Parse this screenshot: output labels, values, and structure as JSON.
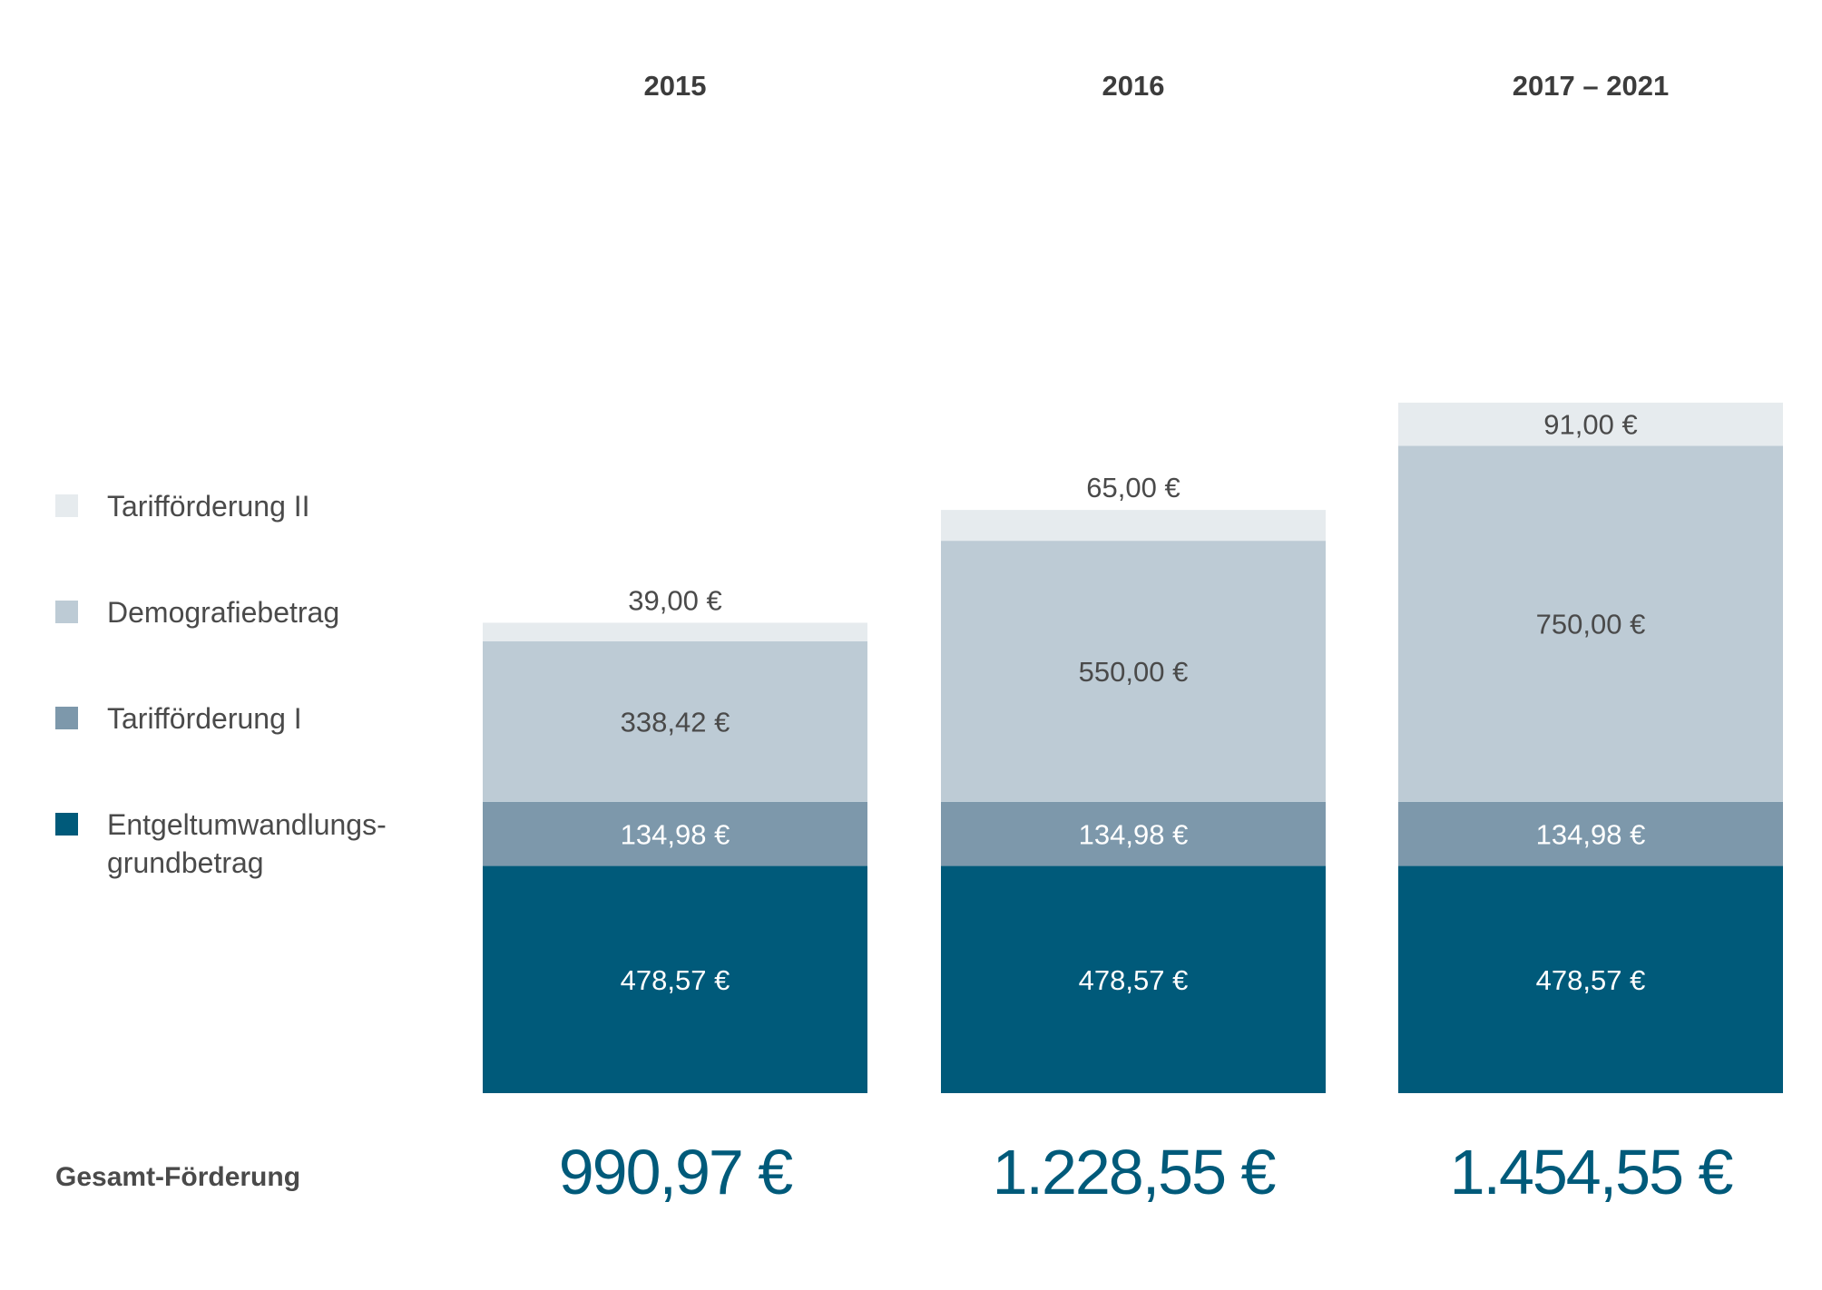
{
  "chart_data": {
    "type": "bar",
    "stacked": true,
    "categories": [
      "2015",
      "2016",
      "2017 – 2021"
    ],
    "series": [
      {
        "name": "Entgeltumwandlungs-grundbetrag",
        "legend_lines": [
          "Entgeltumwandlungs-",
          "grundbetrag"
        ],
        "color": "#005a7a",
        "label_color": "#ffffff",
        "values": [
          478.57,
          478.57,
          478.57
        ],
        "labels": [
          "478,57 €",
          "478,57 €",
          "478,57 €"
        ]
      },
      {
        "name": "Tarifförderung I",
        "legend_lines": [
          "Tarifförderung I"
        ],
        "color": "#7d98ab",
        "label_color": "#ffffff",
        "values": [
          134.98,
          134.98,
          134.98
        ],
        "labels": [
          "134,98 €",
          "134,98 €",
          "134,98 €"
        ]
      },
      {
        "name": "Demografiebetrag",
        "legend_lines": [
          "Demografiebetrag"
        ],
        "color": "#bdcbd5",
        "label_color": "#4a4a4a",
        "values": [
          338.42,
          550.0,
          750.0
        ],
        "labels": [
          "338,42 €",
          "550,00 €",
          "750,00 €"
        ]
      },
      {
        "name": "Tarifförderung II",
        "legend_lines": [
          "Tarifförderung II"
        ],
        "color": "#e6ebee",
        "label_color": "#4a4a4a",
        "values": [
          39.0,
          65.0,
          91.0
        ],
        "labels": [
          "39,00 €",
          "65,00 €",
          "91,00 €"
        ]
      }
    ],
    "totals_title": "Gesamt-Förderung",
    "totals": [
      "990,97 €",
      "1.228,55 €",
      "1.454,55 €"
    ],
    "totals_values": [
      990.97,
      1228.55,
      1454.55
    ],
    "legend_position": "left",
    "grid": false
  }
}
